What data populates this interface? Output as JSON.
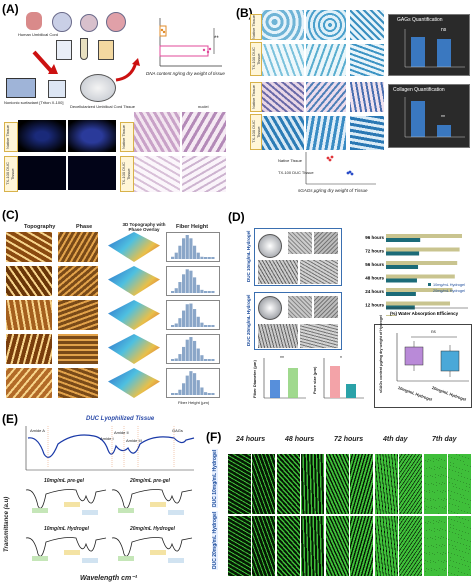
{
  "labels": {
    "A": "(A)",
    "B": "(B)",
    "C": "(C)",
    "D": "(D)",
    "E": "(E)",
    "F": "(F)"
  },
  "panelA": {
    "cord_label": "Human Umbilical Cord",
    "solvent_label": "Nonionic surfactant [Triton X-100]",
    "decell_label": "Decellularized Umbilical Cord Tissue",
    "row_native": "Native Tissue",
    "row_tx": "TX-100 DUC Tissue",
    "nuclei_label": "nuclei",
    "chart_xlabel": "DNA content ng/mg dry weight of tissue",
    "sig": "**"
  },
  "panelB": {
    "row_labels": [
      "Native Tissue",
      "TX-100 DUC Tissue",
      "Native Tissue",
      "TX-100 DUC Tissue"
    ],
    "gag_title": "GAGs Quantification",
    "gag_sig": "ns",
    "col_title": "Collagen Quantification",
    "col_sig": "**",
    "scatter_xlabel": "sGAGs μg/mg dry weight of Tissue",
    "scatter_rows": [
      "TX-100 DUC Tissue",
      "Native Tissue"
    ]
  },
  "panelC": {
    "headers": [
      "Topography",
      "Phase",
      "3D Topography with Phase Overlay",
      "Fiber Height"
    ],
    "hist_xlabel": "Fiber Height (μm)"
  },
  "panelD": {
    "row1_label": "DUC 10mg/mL Hydrogel",
    "row2_label": "DUC 20mg/mL Hydrogel",
    "bar_categories": [
      "96 hours",
      "72 hours",
      "56 hours",
      "48 hours",
      "24 hours",
      "12 hours",
      "Initial weight"
    ],
    "legend": [
      "10mg/mL Hydrogel",
      "20mg/mL Hydrogel"
    ],
    "bar_xlabel": "(%) Water Absorption Efficiency",
    "fiber_ylabel": "Fiber Diameter (μm)",
    "pore_ylabel": "Pore size (μm)",
    "fiber_sig": "**",
    "pore_sig": "*",
    "gag_ylabel": "sGAGs content μg/mg dry weight of Hydrogel",
    "gag_sig": "ns",
    "gag_x": [
      "10mg/mL Hydrogel",
      "20mg/mL Hydrogel"
    ]
  },
  "panelE": {
    "title": "DUC Lyophilized Tissue",
    "peaks": [
      "Amide A",
      "Amide I",
      "Amide II",
      "Amide III",
      "GAGs"
    ],
    "sub_titles": [
      "10mg/mL pre-gel",
      "20mg/mL pre-gel",
      "10mg/mL Hydrogel",
      "20mg/mL Hydrogel"
    ],
    "ylabel": "Transmittance (a.u)",
    "xlabel": "Wavelength cm⁻¹"
  },
  "panelF": {
    "times": [
      "24 hours",
      "48 hours",
      "72 hours",
      "4th day",
      "7th day"
    ],
    "rows": [
      "DUC 10mg/mL Hydrogel",
      "DUC 20mg/mL Hydrogel"
    ]
  },
  "colors": {
    "teal": "#1c6b78",
    "khaki": "#c9c48f",
    "gfp": "#3fbf3a",
    "blue_bar": "#3a78c0",
    "pink": "#e0489a",
    "afm_orange": "#c8741e"
  }
}
